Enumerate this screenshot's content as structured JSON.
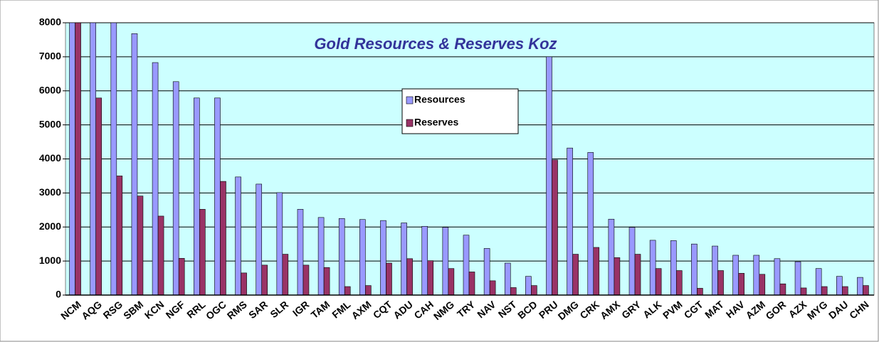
{
  "chart_data": {
    "type": "bar",
    "title": "Gold Resources & Reserves Koz",
    "categories": [
      "NCM",
      "AQG",
      "RSG",
      "SBM",
      "KCN",
      "NGF",
      "RRL",
      "OGC",
      "RMS",
      "SAR",
      "SLR",
      "IGR",
      "TAM",
      "FML",
      "AXM",
      "CQT",
      "ADU",
      "CAH",
      "NMG",
      "TRY",
      "NAV",
      "NST",
      "BCD",
      "PRU",
      "DMG",
      "CRK",
      "AMX",
      "GRY",
      "ALK",
      "PVM",
      "CGT",
      "MAT",
      "HAV",
      "AZM",
      "GOR",
      "AZX",
      "MYG",
      "DAU",
      "CHN"
    ],
    "series": [
      {
        "name": "Resources",
        "color": "#9999ff",
        "values": [
          8000,
          8000,
          8000,
          7680,
          6830,
          6270,
          5790,
          5790,
          3470,
          3260,
          3010,
          2520,
          2280,
          2250,
          2220,
          2190,
          2120,
          2020,
          1990,
          1760,
          1370,
          940,
          550,
          7000,
          4320,
          4190,
          2230,
          1990,
          1610,
          1600,
          1500,
          1440,
          1170,
          1170,
          1070,
          980,
          780,
          550,
          520
        ]
      },
      {
        "name": "Reserves",
        "color": "#993366",
        "values": [
          8000,
          5790,
          3500,
          2910,
          2320,
          1080,
          2520,
          3340,
          650,
          880,
          1200,
          880,
          810,
          250,
          280,
          940,
          1070,
          1010,
          780,
          680,
          420,
          220,
          280,
          3970,
          1200,
          1400,
          1100,
          1200,
          780,
          720,
          200,
          720,
          640,
          610,
          330,
          210,
          250,
          250,
          280
        ]
      }
    ],
    "ylim": [
      0,
      8000
    ],
    "yticks": [
      0,
      1000,
      2000,
      3000,
      4000,
      5000,
      6000,
      7000,
      8000
    ],
    "grid": true
  }
}
